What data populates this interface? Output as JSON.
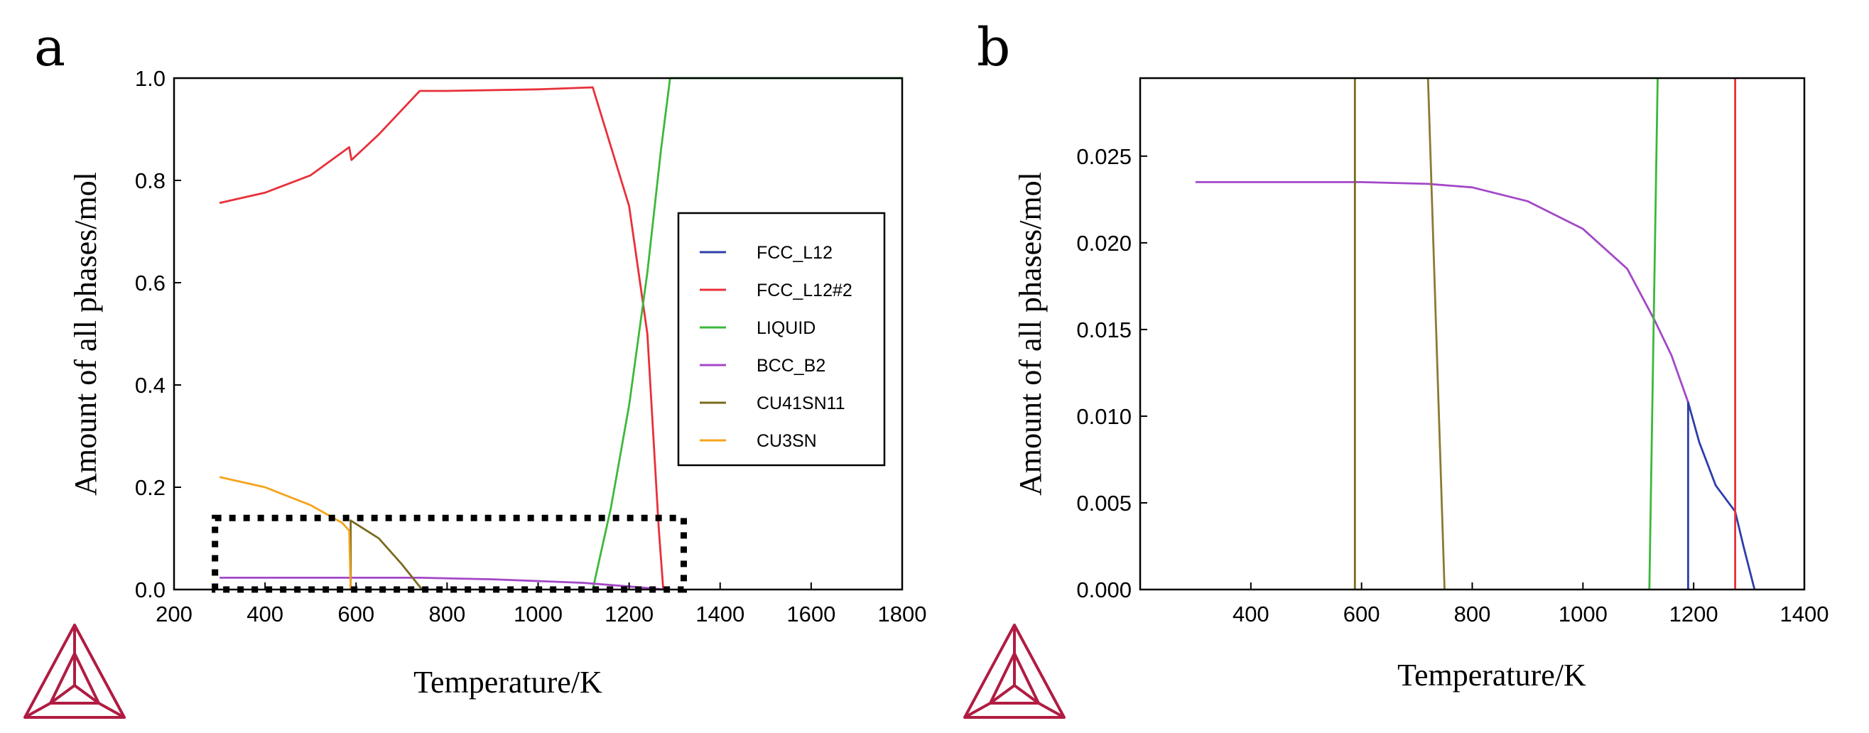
{
  "chart_data": [
    {
      "panel": "a",
      "type": "line",
      "xlabel": "Temperature/K",
      "ylabel": "Amount of all phases/mol",
      "xlim": [
        200,
        1800
      ],
      "ylim": [
        0,
        1.0
      ],
      "xticks": [
        "200",
        "400",
        "600",
        "800",
        "1000",
        "1200",
        "1400",
        "1600",
        "1800"
      ],
      "yticks": [
        "0.0",
        "0.2",
        "0.4",
        "0.6",
        "0.8",
        "1.0"
      ],
      "legend_position": "right",
      "legend": [
        "FCC_L12",
        "FCC_L12#2",
        "LIQUID",
        "BCC_B2",
        "CU41SN11",
        "CU3SN"
      ],
      "highlight_region": {
        "x": [
          290,
          1320
        ],
        "y": [
          0.0,
          0.14
        ]
      },
      "series": [
        {
          "name": "FCC_L12",
          "color": "#2d3ea8",
          "points": []
        },
        {
          "name": "FCC_L12#2",
          "color": "#e8303a",
          "points": [
            [
              300,
              0.756
            ],
            [
              400,
              0.776
            ],
            [
              500,
              0.81
            ],
            [
              585,
              0.865
            ],
            [
              590,
              0.84
            ],
            [
              650,
              0.89
            ],
            [
              740,
              0.975
            ],
            [
              800,
              0.975
            ],
            [
              1000,
              0.978
            ],
            [
              1120,
              0.982
            ],
            [
              1200,
              0.75
            ],
            [
              1240,
              0.5
            ],
            [
              1265,
              0.12
            ],
            [
              1275,
              0.0
            ]
          ]
        },
        {
          "name": "LIQUID",
          "color": "#3cb83c",
          "points": [
            [
              1120,
              0.0
            ],
            [
              1160,
              0.16
            ],
            [
              1200,
              0.36
            ],
            [
              1240,
              0.62
            ],
            [
              1270,
              0.86
            ],
            [
              1290,
              1.0
            ],
            [
              1800,
              1.0
            ]
          ]
        },
        {
          "name": "BCC_B2",
          "color": "#a347c8",
          "points": [
            [
              300,
              0.023
            ],
            [
              600,
              0.023
            ],
            [
              740,
              0.023
            ],
            [
              900,
              0.02
            ],
            [
              1100,
              0.013
            ],
            [
              1200,
              0.006
            ],
            [
              1280,
              0.0
            ]
          ]
        },
        {
          "name": "CU41SN11",
          "color": "#7a6a1e",
          "points": [
            [
              588,
              0.0
            ],
            [
              588,
              0.135
            ],
            [
              650,
              0.1
            ],
            [
              700,
              0.05
            ],
            [
              745,
              0.0
            ]
          ]
        },
        {
          "name": "CU3SN",
          "color": "#f5a31c",
          "points": [
            [
              300,
              0.22
            ],
            [
              400,
              0.2
            ],
            [
              500,
              0.165
            ],
            [
              570,
              0.13
            ],
            [
              585,
              0.115
            ],
            [
              588,
              0.0
            ]
          ]
        }
      ]
    },
    {
      "panel": "b",
      "type": "line",
      "xlabel": "Temperature/K",
      "ylabel": "Amount of all phases/mol",
      "xlim": [
        200,
        1400
      ],
      "ylim": [
        0,
        0.0295
      ],
      "xticks": [
        "400",
        "600",
        "800",
        "1000",
        "1200",
        "1400"
      ],
      "yticks": [
        "0.000",
        "0.005",
        "0.010",
        "0.015",
        "0.020",
        "0.025"
      ],
      "series": [
        {
          "name": "BCC_B2",
          "color": "#a347c8",
          "points": [
            [
              300,
              0.0235
            ],
            [
              600,
              0.0235
            ],
            [
              720,
              0.0234
            ],
            [
              800,
              0.0232
            ],
            [
              900,
              0.0224
            ],
            [
              1000,
              0.0208
            ],
            [
              1080,
              0.0185
            ],
            [
              1130,
              0.0155
            ],
            [
              1160,
              0.0135
            ],
            [
              1190,
              0.0108
            ]
          ]
        },
        {
          "name": "FCC_L12",
          "color": "#2d3ea8",
          "points": [
            [
              1190,
              0.0
            ],
            [
              1190,
              0.0108
            ],
            [
              1210,
              0.0085
            ],
            [
              1240,
              0.006
            ],
            [
              1275,
              0.0045
            ],
            [
              1290,
              0.0025
            ],
            [
              1310,
              0.0
            ]
          ]
        },
        {
          "name": "LIQUID",
          "color": "#3cb83c",
          "points": [
            [
              1120,
              0.0
            ],
            [
              1135,
              0.0295
            ]
          ]
        },
        {
          "name": "FCC_L12#2",
          "color": "#e8303a",
          "points": [
            [
              1275,
              0.0
            ],
            [
              1275,
              0.0295
            ]
          ]
        },
        {
          "name": "CU41SN11",
          "color": "#7a6a1e",
          "points": [
            [
              588,
              0.0
            ],
            [
              588,
              0.0295
            ]
          ]
        },
        {
          "name": "CU41SN11",
          "color": "#8a7a32",
          "points": [
            [
              720,
              0.0295
            ],
            [
              750,
              0.0
            ]
          ]
        }
      ]
    }
  ],
  "panels": {
    "a": {
      "letter": "a"
    },
    "b": {
      "letter": "b"
    }
  }
}
